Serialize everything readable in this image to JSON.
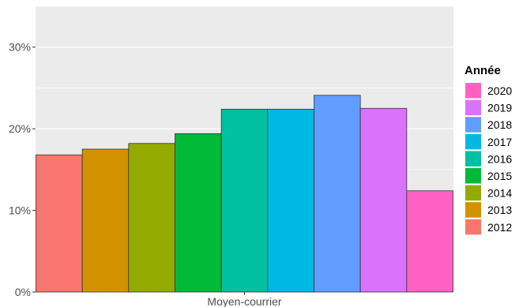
{
  "chart_data": {
    "type": "bar",
    "categories": [
      "Moyen-courrier"
    ],
    "series": [
      {
        "name": "2012",
        "values": [
          16.8
        ],
        "color": "#F8766D"
      },
      {
        "name": "2013",
        "values": [
          17.5
        ],
        "color": "#D39200"
      },
      {
        "name": "2014",
        "values": [
          18.2
        ],
        "color": "#93AA00"
      },
      {
        "name": "2015",
        "values": [
          19.4
        ],
        "color": "#00BA38"
      },
      {
        "name": "2016",
        "values": [
          22.4
        ],
        "color": "#00C19F"
      },
      {
        "name": "2017",
        "values": [
          22.4
        ],
        "color": "#00B9E3"
      },
      {
        "name": "2018",
        "values": [
          24.1
        ],
        "color": "#619CFF"
      },
      {
        "name": "2019",
        "values": [
          22.5
        ],
        "color": "#DB72FB"
      },
      {
        "name": "2020",
        "values": [
          12.4
        ],
        "color": "#FF61C3"
      }
    ],
    "title": "",
    "xlabel": "",
    "ylabel": "",
    "ylim": [
      0,
      35
    ],
    "y_ticks": [
      0,
      10,
      20,
      30
    ],
    "y_tick_labels": [
      "0%",
      "10%",
      "20%",
      "30%"
    ],
    "grid": true,
    "legend": {
      "title": "Année",
      "placement": "right",
      "order": [
        "2020",
        "2019",
        "2018",
        "2017",
        "2016",
        "2015",
        "2014",
        "2013",
        "2012"
      ]
    },
    "panel_background": "#EBEBEB"
  }
}
